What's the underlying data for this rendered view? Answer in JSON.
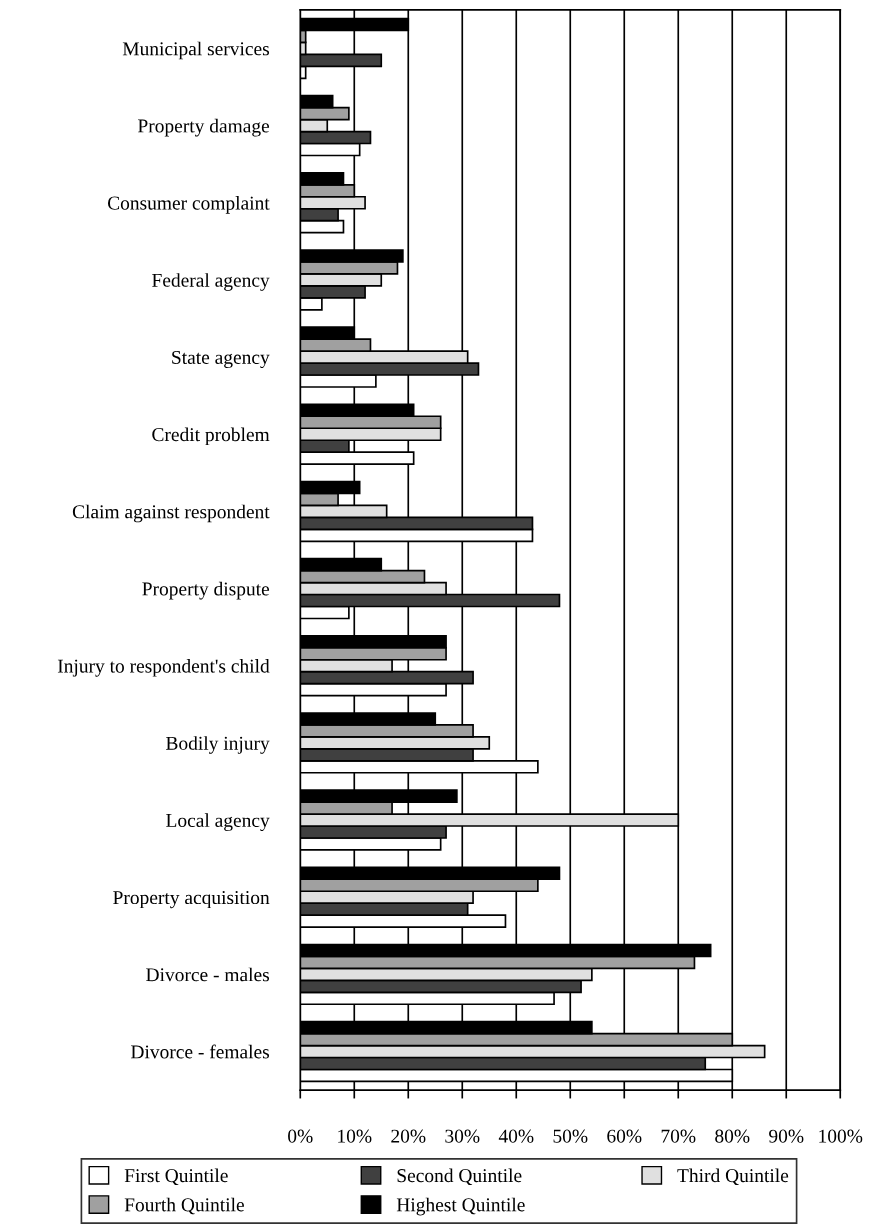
{
  "chart_data": {
    "type": "bar",
    "orientation": "horizontal",
    "categories": [
      "Municipal services",
      "Property damage",
      "Consumer complaint",
      "Federal agency",
      "State agency",
      "Credit problem",
      "Claim against respondent",
      "Property dispute",
      "Injury to respondent's child",
      "Bodily injury",
      "Local agency",
      "Property acquisition",
      "Divorce - males",
      "Divorce - females"
    ],
    "series": [
      {
        "name": "First Quintile",
        "color": "#ffffff",
        "values": [
          1,
          11,
          8,
          4,
          14,
          21,
          43,
          9,
          27,
          44,
          26,
          38,
          47,
          80
        ]
      },
      {
        "name": "Second Quintile",
        "color": "#404040",
        "values": [
          15,
          13,
          7,
          12,
          33,
          9,
          43,
          48,
          32,
          32,
          27,
          31,
          52,
          75
        ]
      },
      {
        "name": "Third Quintile",
        "color": "#e0e0e0",
        "values": [
          1,
          5,
          12,
          15,
          31,
          26,
          16,
          27,
          17,
          35,
          70,
          32,
          54,
          86
        ]
      },
      {
        "name": "Fourth Quintile",
        "color": "#a0a0a0",
        "values": [
          1,
          9,
          10,
          18,
          13,
          26,
          7,
          23,
          27,
          32,
          17,
          44,
          73,
          80
        ]
      },
      {
        "name": "Highest Quintile",
        "color": "#000000",
        "values": [
          20,
          6,
          8,
          19,
          10,
          21,
          11,
          15,
          27,
          25,
          29,
          48,
          76,
          54
        ]
      }
    ],
    "xlim": [
      0,
      100
    ],
    "xticks": [
      {
        "value": 0,
        "label": "0%"
      },
      {
        "value": 10,
        "label": "10%"
      },
      {
        "value": 20,
        "label": "20%"
      },
      {
        "value": 30,
        "label": "30%"
      },
      {
        "value": 40,
        "label": "40%"
      },
      {
        "value": 50,
        "label": "50%"
      },
      {
        "value": 60,
        "label": "60%"
      },
      {
        "value": 70,
        "label": "70%"
      },
      {
        "value": 80,
        "label": "80%"
      },
      {
        "value": 90,
        "label": "90%"
      },
      {
        "value": 100,
        "label": "100%"
      }
    ],
    "grid": "x",
    "legend": "bottom"
  }
}
